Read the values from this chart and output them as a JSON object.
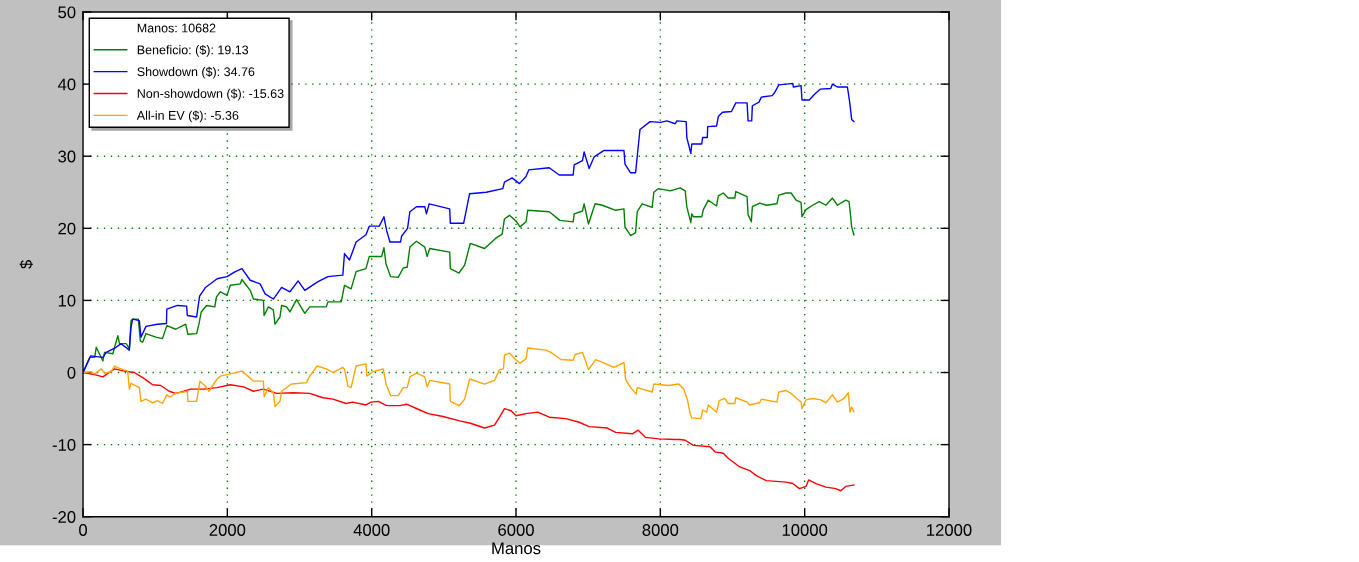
{
  "chart_data": {
    "type": "line",
    "xlabel": "Manos",
    "ylabel": "$",
    "legend_title": "Manos: 10682",
    "legend": "top left",
    "grid": true,
    "xlim": [
      0,
      12000
    ],
    "xticks": [
      0,
      2000,
      4000,
      6000,
      8000,
      10000,
      12000
    ],
    "ylim": [
      -20,
      50
    ],
    "yticks": [
      -20,
      -10,
      0,
      10,
      20,
      30,
      40,
      50
    ],
    "series": [
      {
        "name": "Beneficio: ($): 19.13",
        "color": "#008000",
        "x": [
          0,
          92,
          161,
          183,
          275,
          298,
          413,
          482,
          505,
          597,
          642,
          665,
          688,
          766,
          794,
          826,
          872,
          1009,
          1101,
          1161,
          1285,
          1422,
          1454,
          1574,
          1606,
          1638,
          1711,
          1826,
          1849,
          1904,
          1995,
          2041,
          2179,
          2202,
          2316,
          2362,
          2500,
          2509,
          2569,
          2637,
          2660,
          2729,
          2752,
          2821,
          2867,
          2959,
          3073,
          3142,
          3371,
          3394,
          3578,
          3623,
          3715,
          3784,
          3921,
          3967,
          4138,
          4170,
          4198,
          4262,
          4368,
          4437,
          4492,
          4529,
          4621,
          4736,
          4768,
          4805,
          5081,
          5090,
          5210,
          5288,
          5366,
          5564,
          5716,
          5808,
          5840,
          5909,
          6001,
          6056,
          6139,
          6162,
          6461,
          6608,
          6792,
          6806,
          6921,
          6944,
          7004,
          7096,
          7197,
          7381,
          7496,
          7510,
          7588,
          7657,
          7680,
          7749,
          7887,
          7910,
          7970,
          8138,
          8275,
          8344,
          8367,
          8422,
          8436,
          8459,
          8573,
          8596,
          8665,
          8780,
          8803,
          8872,
          8940,
          9032,
          9046,
          9202,
          9216,
          9261,
          9275,
          9376,
          9468,
          9615,
          9642,
          9743,
          9812,
          9881,
          9950,
          9963,
          10018,
          10110,
          10202,
          10294,
          10385,
          10454,
          10569,
          10615,
          10638,
          10651,
          10682
        ],
        "values": [
          0,
          2.1,
          2.1,
          3.5,
          1.6,
          2.8,
          2.6,
          5.1,
          4.0,
          4.0,
          3.3,
          7.2,
          7.4,
          7.4,
          4.4,
          4.2,
          5.4,
          4.9,
          4.7,
          6.5,
          6.0,
          6.7,
          5.3,
          5.4,
          6.7,
          8.4,
          9.3,
          9.1,
          10.5,
          11.2,
          10.7,
          12.1,
          12.3,
          12.9,
          11.4,
          10.2,
          10.0,
          7.9,
          9.1,
          8.7,
          6.7,
          7.7,
          9.3,
          9.1,
          8.4,
          10.1,
          8.2,
          9.1,
          9.1,
          9.8,
          9.8,
          12.1,
          11.6,
          14.0,
          14.4,
          16.1,
          16.1,
          17.3,
          15.1,
          13.3,
          13.2,
          14.5,
          14.6,
          17.4,
          18.2,
          17.4,
          16.1,
          17.2,
          16.7,
          14.4,
          13.8,
          14.9,
          17.9,
          17.2,
          18.6,
          19.2,
          21.3,
          21.8,
          21.0,
          20.2,
          20.9,
          22.5,
          22.3,
          21.1,
          20.9,
          22.0,
          22.4,
          23.4,
          20.6,
          23.4,
          23.2,
          22.5,
          22.7,
          20.2,
          19.0,
          19.4,
          22.3,
          23.4,
          22.9,
          25.0,
          25.5,
          25.2,
          25.6,
          25.2,
          23.0,
          20.8,
          22.0,
          21.6,
          21.6,
          22.6,
          23.9,
          23.1,
          24.5,
          24.9,
          24.2,
          24.2,
          25.1,
          24.4,
          21.9,
          20.9,
          23.0,
          23.5,
          23.2,
          23.4,
          24.6,
          24.9,
          24.9,
          23.9,
          23.6,
          21.6,
          22.6,
          23.2,
          23.7,
          23.2,
          24.2,
          23.2,
          23.9,
          23.7,
          21.6,
          20.2,
          19.1
        ]
      },
      {
        "name": "Showdown ($): 34.76",
        "color": "#0000ff",
        "x": [
          0,
          106,
          275,
          321,
          459,
          528,
          642,
          665,
          688,
          780,
          803,
          872,
          1032,
          1156,
          1161,
          1308,
          1436,
          1445,
          1574,
          1615,
          1697,
          1858,
          1995,
          2110,
          2202,
          2316,
          2454,
          2523,
          2637,
          2660,
          2752,
          2867,
          2981,
          3073,
          3256,
          3394,
          3600,
          3623,
          3692,
          3784,
          3921,
          3967,
          4105,
          4170,
          4207,
          4253,
          4400,
          4414,
          4497,
          4529,
          4621,
          4736,
          4759,
          4796,
          5081,
          5090,
          5274,
          5357,
          5587,
          5817,
          5840,
          5946,
          6047,
          6139,
          6176,
          6461,
          6599,
          6792,
          6806,
          6921,
          6944,
          7013,
          7082,
          7220,
          7496,
          7510,
          7588,
          7657,
          7680,
          7718,
          7857,
          8000,
          8092,
          8206,
          8229,
          8358,
          8367,
          8422,
          8436,
          8573,
          8587,
          8651,
          8656,
          8780,
          8803,
          8862,
          8986,
          9046,
          9202,
          9216,
          9266,
          9275,
          9367,
          9399,
          9550,
          9583,
          9642,
          9743,
          9835,
          9844,
          9950,
          9963,
          10064,
          10137,
          10215,
          10362,
          10385,
          10454,
          10592,
          10624,
          10651,
          10682
        ],
        "values": [
          0,
          2.3,
          2.1,
          2.8,
          3.5,
          4.0,
          3.1,
          6.3,
          7.4,
          7.2,
          4.9,
          6.4,
          6.7,
          6.8,
          8.8,
          9.3,
          9.2,
          7.9,
          7.7,
          10.6,
          11.8,
          13.0,
          13.3,
          14.0,
          14.4,
          12.8,
          12.3,
          10.9,
          10.2,
          10.5,
          11.8,
          11.2,
          12.7,
          11.4,
          12.6,
          13.3,
          13.5,
          16.5,
          15.6,
          18.1,
          19.1,
          20.3,
          20.3,
          21.6,
          19.7,
          18.1,
          18.1,
          18.9,
          20.0,
          22.3,
          23.0,
          23.0,
          22.0,
          23.4,
          22.7,
          20.7,
          20.7,
          24.8,
          25.0,
          25.5,
          26.4,
          27.0,
          26.2,
          27.2,
          28.1,
          28.4,
          27.4,
          27.4,
          28.8,
          29.4,
          30.6,
          28.3,
          29.9,
          30.8,
          30.8,
          28.9,
          27.7,
          27.7,
          30.0,
          33.7,
          34.8,
          34.7,
          34.9,
          34.5,
          34.9,
          34.8,
          32.6,
          30.4,
          31.7,
          31.7,
          32.6,
          32.6,
          34.1,
          34.2,
          35.5,
          36.1,
          36.2,
          37.4,
          37.4,
          34.9,
          34.9,
          37.0,
          37.5,
          38.2,
          38.4,
          38.8,
          39.9,
          40.0,
          40.1,
          39.6,
          39.8,
          37.8,
          37.8,
          38.6,
          39.3,
          39.4,
          40.0,
          39.6,
          39.6,
          37.5,
          35.1,
          34.8
        ]
      },
      {
        "name": "Non-showdown ($): -15.63",
        "color": "#ff0000",
        "x": [
          0,
          161,
          275,
          436,
          574,
          711,
          826,
          895,
          964,
          1078,
          1193,
          1285,
          1399,
          1491,
          1674,
          1858,
          2041,
          2225,
          2362,
          2500,
          2683,
          2913,
          3142,
          3326,
          3463,
          3647,
          3738,
          3921,
          3991,
          4092,
          4207,
          4391,
          4483,
          4667,
          4782,
          4989,
          5219,
          5357,
          5564,
          5702,
          5771,
          5840,
          5932,
          6001,
          6139,
          6300,
          6461,
          6691,
          6875,
          7013,
          7266,
          7381,
          7611,
          7694,
          7795,
          7979,
          8209,
          8275,
          8344,
          8459,
          8688,
          8757,
          8872,
          8940,
          9101,
          9238,
          9330,
          9468,
          9743,
          9835,
          9927,
          10018,
          10055,
          10156,
          10294,
          10431,
          10500,
          10569,
          10682
        ],
        "values": [
          0,
          -0.3,
          -0.6,
          0.5,
          0.2,
          0.0,
          -0.7,
          -1.2,
          -1.7,
          -1.8,
          -2.6,
          -2.9,
          -2.6,
          -2.3,
          -2.3,
          -2.1,
          -1.7,
          -2.0,
          -2.6,
          -2.3,
          -2.9,
          -2.8,
          -2.9,
          -3.5,
          -3.7,
          -4.3,
          -4.1,
          -4.5,
          -4.1,
          -4.0,
          -4.6,
          -4.6,
          -4.4,
          -5.2,
          -5.7,
          -6.1,
          -6.7,
          -7.0,
          -7.7,
          -7.3,
          -6.2,
          -5.0,
          -5.3,
          -6.0,
          -5.7,
          -5.5,
          -6.2,
          -6.4,
          -6.9,
          -7.5,
          -7.7,
          -8.3,
          -8.5,
          -8.0,
          -9.0,
          -9.2,
          -9.3,
          -9.3,
          -9.4,
          -10.1,
          -10.3,
          -11.0,
          -11.2,
          -11.9,
          -13.1,
          -13.6,
          -14.3,
          -15.0,
          -15.2,
          -15.4,
          -16.1,
          -15.8,
          -14.9,
          -15.4,
          -15.9,
          -16.1,
          -16.4,
          -15.8,
          -15.6
        ]
      },
      {
        "name": "All-in EV ($): -5.36",
        "color": "#ffa500",
        "x": [
          0,
          115,
          161,
          252,
          298,
          390,
          436,
          472,
          528,
          619,
          642,
          665,
          780,
          803,
          872,
          964,
          1032,
          1101,
          1161,
          1207,
          1285,
          1445,
          1454,
          1574,
          1620,
          1697,
          1743,
          1858,
          1904,
          1995,
          2202,
          2362,
          2500,
          2509,
          2569,
          2637,
          2660,
          2729,
          2752,
          2890,
          3096,
          3142,
          3243,
          3371,
          3463,
          3600,
          3623,
          3670,
          3715,
          3784,
          3921,
          3931,
          4013,
          4161,
          4198,
          4262,
          4368,
          4437,
          4492,
          4529,
          4621,
          4736,
          4768,
          4805,
          5081,
          5090,
          5210,
          5288,
          5357,
          5564,
          5702,
          5771,
          5826,
          5840,
          5909,
          5992,
          6056,
          6139,
          6162,
          6415,
          6484,
          6622,
          6792,
          6820,
          6921,
          7004,
          7105,
          7197,
          7358,
          7496,
          7519,
          7588,
          7666,
          7680,
          7887,
          7910,
          8117,
          8255,
          8324,
          8376,
          8413,
          8436,
          8560,
          8587,
          8642,
          8665,
          8780,
          8816,
          8894,
          8940,
          9032,
          9046,
          9202,
          9238,
          9376,
          9399,
          9615,
          9642,
          9743,
          9812,
          9890,
          9950,
          9963,
          10018,
          10110,
          10225,
          10294,
          10385,
          10454,
          10546,
          10605,
          10628,
          10651,
          10682
        ],
        "values": [
          0,
          0.1,
          -0.2,
          0.5,
          -0.1,
          0.1,
          0.9,
          0.7,
          0.5,
          0.2,
          -2.3,
          -1.5,
          -2.1,
          -4.0,
          -3.7,
          -4.2,
          -3.9,
          -4.3,
          -3.1,
          -3.4,
          -2.9,
          -2.6,
          -4.0,
          -4.0,
          -1.2,
          -1.9,
          -2.6,
          -0.9,
          -0.5,
          -0.3,
          0.2,
          -1.2,
          -1.2,
          -3.4,
          -2.1,
          -2.8,
          -4.7,
          -4.0,
          -2.6,
          -1.6,
          -1.4,
          -0.5,
          0.9,
          0.5,
          0.0,
          0.7,
          0.5,
          -1.9,
          -2.1,
          0.9,
          1.2,
          -0.5,
          0.1,
          0.5,
          -1.6,
          -3.2,
          -3.2,
          -2.1,
          -2.1,
          -0.6,
          -0.1,
          -0.6,
          -2.0,
          -1.1,
          -1.6,
          -4.0,
          -4.6,
          -3.7,
          -0.9,
          -1.6,
          -1.1,
          0.4,
          0.5,
          2.4,
          2.7,
          1.8,
          1.3,
          1.9,
          3.4,
          3.1,
          2.8,
          1.8,
          1.7,
          2.5,
          2.8,
          0.4,
          1.8,
          1.4,
          0.7,
          1.4,
          -1.0,
          -2.1,
          -3.0,
          -2.1,
          -2.7,
          -1.6,
          -1.8,
          -1.6,
          -2.3,
          -3.8,
          -5.7,
          -6.3,
          -6.4,
          -5.2,
          -5.5,
          -4.5,
          -5.5,
          -3.9,
          -3.6,
          -4.3,
          -4.3,
          -3.5,
          -4.1,
          -4.5,
          -4.2,
          -3.7,
          -4.1,
          -2.7,
          -2.5,
          -2.9,
          -3.6,
          -4.1,
          -5.0,
          -3.8,
          -3.6,
          -3.8,
          -4.2,
          -3.1,
          -4.1,
          -3.6,
          -2.8,
          -5.5,
          -4.8,
          -5.4
        ]
      }
    ]
  }
}
